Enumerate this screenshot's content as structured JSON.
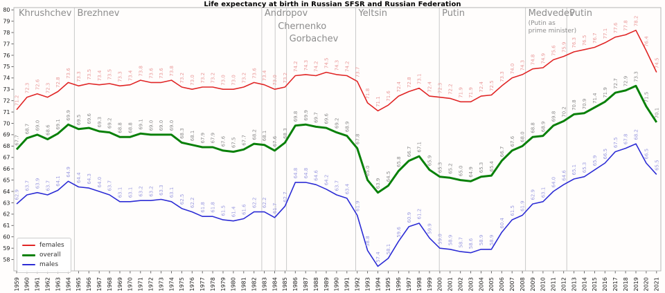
{
  "title": "Life expectancy at birth in Russian SFSR and Russian Federation",
  "eras": [
    {
      "label": "Khrushchev",
      "year": null,
      "row": 0
    },
    {
      "label": "Brezhnev",
      "year": 1964.6,
      "row": 0
    },
    {
      "label": "Andropov",
      "year": 1982.75,
      "row": 0
    },
    {
      "label": "Chernenko",
      "year": 1984.05,
      "row": 1
    },
    {
      "label": "Gorbachev",
      "year": 1985.15,
      "row": 2
    },
    {
      "label": "Yeltsin",
      "year": 1991.85,
      "row": 0
    },
    {
      "label": "Putin",
      "year": 1999.95,
      "row": 0
    },
    {
      "label": "Medvedev",
      "year": 2008.3,
      "row": 0,
      "note": "(Putin as\nprime minister)"
    },
    {
      "label": "Putin",
      "year": 2012.3,
      "row": 0
    }
  ],
  "chart_data": {
    "type": "line",
    "title": "Life expectancy at birth in Russian SFSR and Russian Federation",
    "xlabel": "",
    "ylabel": "",
    "grid": false,
    "legend_position": "lower left",
    "ylim": [
      57.0,
      80.2
    ],
    "yticks": [
      58,
      59,
      60,
      61,
      62,
      63,
      64,
      65,
      66,
      67,
      68,
      69,
      70,
      71,
      72,
      73,
      74,
      75,
      76,
      77,
      78,
      79,
      80
    ],
    "x": [
      1959,
      1960,
      1961,
      1962,
      1963,
      1964,
      1965,
      1966,
      1967,
      1968,
      1969,
      1970,
      1971,
      1972,
      1973,
      1974,
      1975,
      1976,
      1977,
      1978,
      1979,
      1980,
      1981,
      1982,
      1983,
      1984,
      1985,
      1986,
      1987,
      1988,
      1989,
      1990,
      1991,
      1992,
      1993,
      1994,
      1995,
      1996,
      1997,
      1998,
      1999,
      2000,
      2001,
      2002,
      2003,
      2004,
      2005,
      2006,
      2007,
      2008,
      2009,
      2010,
      2011,
      2012,
      2013,
      2014,
      2015,
      2016,
      2017,
      2018,
      2019,
      2020,
      2021
    ],
    "series": [
      {
        "name": "females",
        "color": "#e02424",
        "label_color": "#ea9a9a",
        "line_width": 1.6,
        "values": [
          71.2,
          72.3,
          72.6,
          72.3,
          72.8,
          73.6,
          73.3,
          73.5,
          73.4,
          73.5,
          73.3,
          73.4,
          73.8,
          73.6,
          73.6,
          73.8,
          73.2,
          73.0,
          73.2,
          73.2,
          73.0,
          73.0,
          73.2,
          73.6,
          73.4,
          73.0,
          73.2,
          74.2,
          74.3,
          74.2,
          74.5,
          74.3,
          74.2,
          73.7,
          71.8,
          71.1,
          71.6,
          72.4,
          72.8,
          73.1,
          72.4,
          72.3,
          72.2,
          71.9,
          71.9,
          72.4,
          72.5,
          73.3,
          74.0,
          74.3,
          74.8,
          74.9,
          75.6,
          75.9,
          76.3,
          76.5,
          76.7,
          77.1,
          77.6,
          77.8,
          78.2,
          76.4,
          74.5
        ]
      },
      {
        "name": "overall",
        "color": "#088008",
        "label_color": "#8c8c8c",
        "line_width": 3,
        "values": [
          67.7,
          68.7,
          69.0,
          68.6,
          69.1,
          69.9,
          69.5,
          69.6,
          69.3,
          69.2,
          68.8,
          68.8,
          69.1,
          69.0,
          69.0,
          69.0,
          68.3,
          68.1,
          67.9,
          67.9,
          67.6,
          67.5,
          67.7,
          68.2,
          68.1,
          67.6,
          68.3,
          69.8,
          69.9,
          69.7,
          69.6,
          69.2,
          68.9,
          67.8,
          65.0,
          63.9,
          64.5,
          65.8,
          66.7,
          67.1,
          65.9,
          65.3,
          65.2,
          65.0,
          64.9,
          65.3,
          65.4,
          66.7,
          67.6,
          68.0,
          68.8,
          68.9,
          69.8,
          70.2,
          70.8,
          70.9,
          71.4,
          71.9,
          72.7,
          72.9,
          73.3,
          71.5,
          70.1
        ]
      },
      {
        "name": "males",
        "color": "#2b2bd5",
        "label_color": "#9b9be0",
        "line_width": 1.6,
        "values": [
          62.9,
          63.7,
          63.9,
          63.7,
          64.1,
          64.9,
          64.4,
          64.3,
          64.0,
          63.7,
          63.1,
          63.1,
          63.2,
          63.2,
          63.3,
          63.1,
          62.5,
          62.2,
          61.8,
          61.8,
          61.5,
          61.4,
          61.6,
          62.2,
          62.2,
          61.7,
          62.7,
          64.8,
          64.8,
          64.6,
          64.2,
          63.7,
          63.4,
          61.9,
          58.8,
          57.4,
          58.1,
          59.6,
          60.9,
          61.2,
          59.9,
          59.0,
          58.9,
          58.7,
          58.6,
          58.9,
          58.9,
          60.4,
          61.5,
          61.9,
          62.9,
          63.1,
          64.0,
          64.6,
          65.1,
          65.3,
          65.9,
          66.5,
          67.5,
          67.8,
          68.2,
          66.5,
          65.5
        ]
      }
    ],
    "colors": {
      "era_line": "#c9c9c9",
      "era_text": "#8c8c8c",
      "frame": "#b5b5b5",
      "tick": "#555555",
      "tick_text": "#1a1a1a"
    }
  }
}
